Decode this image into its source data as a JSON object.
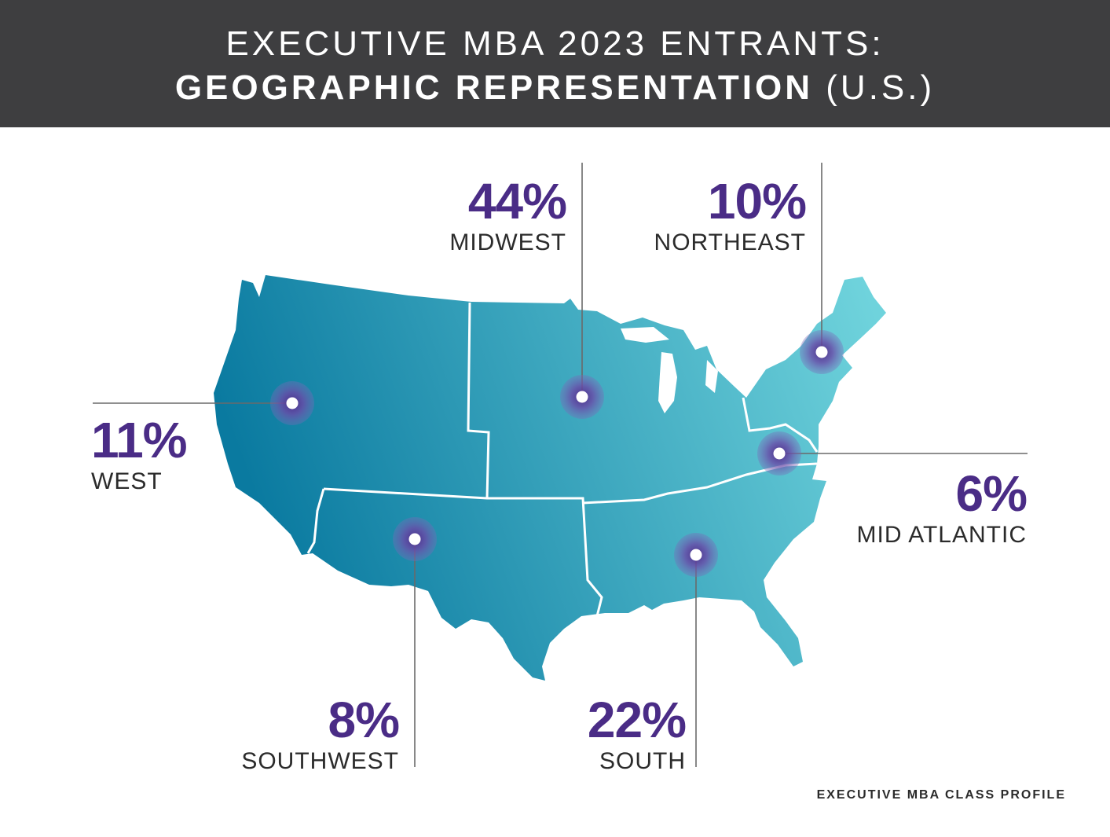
{
  "header": {
    "line1": "EXECUTIVE MBA 2023 ENTRANTS:",
    "line2_bold": "GEOGRAPHIC REPRESENTATION",
    "line2_light": "(U.S.)"
  },
  "regions": {
    "midwest": {
      "pct": "44%",
      "name": "MIDWEST"
    },
    "northeast": {
      "pct": "10%",
      "name": "NORTHEAST"
    },
    "west": {
      "pct": "11%",
      "name": "WEST"
    },
    "mid_atlantic": {
      "pct": "6%",
      "name": "MID ATLANTIC"
    },
    "southwest": {
      "pct": "8%",
      "name": "SOUTHWEST"
    },
    "south": {
      "pct": "22%",
      "name": "SOUTH"
    }
  },
  "colors": {
    "header_bg": "#3e3e40",
    "map_dark": "#0a7aa0",
    "map_light": "#6fd3dc",
    "accent": "#4a2c86"
  },
  "footer": "EXECUTIVE MBA CLASS PROFILE"
}
